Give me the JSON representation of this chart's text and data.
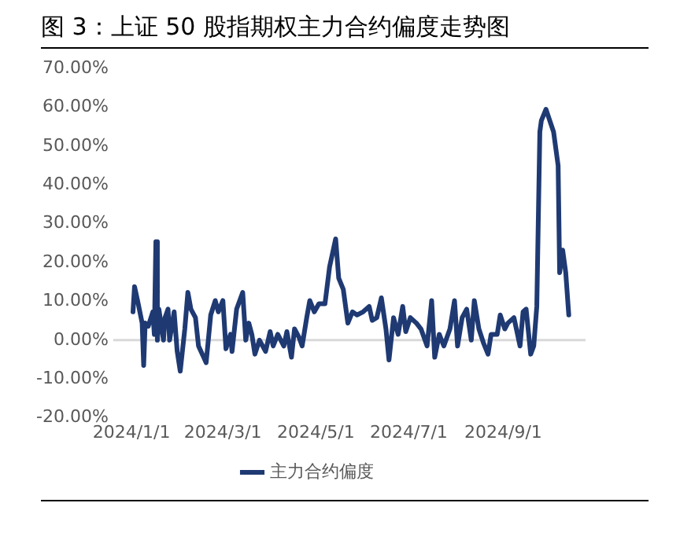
{
  "chart_data": {
    "type": "line",
    "title": "图 3：上证 50 股指期权主力合约偏度走势图",
    "x": [
      "2024-01-02",
      "2024-01-03",
      "2024-01-05",
      "2024-01-08",
      "2024-01-09",
      "2024-01-10",
      "2024-01-12",
      "2024-01-15",
      "2024-01-16",
      "2024-01-17",
      "2024-01-18",
      "2024-01-19",
      "2024-01-22",
      "2024-01-23",
      "2024-01-25",
      "2024-01-26",
      "2024-01-29",
      "2024-01-31",
      "2024-02-02",
      "2024-02-05",
      "2024-02-07",
      "2024-02-09",
      "2024-02-12",
      "2024-02-14",
      "2024-02-19",
      "2024-02-22",
      "2024-02-25",
      "2024-02-27",
      "2024-03-01",
      "2024-03-03",
      "2024-03-06",
      "2024-03-07",
      "2024-03-10",
      "2024-03-14",
      "2024-03-16",
      "2024-03-18",
      "2024-03-20",
      "2024-03-22",
      "2024-03-25",
      "2024-03-29",
      "2024-04-01",
      "2024-04-03",
      "2024-04-06",
      "2024-04-10",
      "2024-04-12",
      "2024-04-15",
      "2024-04-17",
      "2024-04-20",
      "2024-04-22",
      "2024-04-25",
      "2024-04-27",
      "2024-04-30",
      "2024-05-03",
      "2024-05-07",
      "2024-05-10",
      "2024-05-14",
      "2024-05-16",
      "2024-05-19",
      "2024-05-22",
      "2024-05-25",
      "2024-05-28",
      "2024-06-01",
      "2024-06-05",
      "2024-06-07",
      "2024-06-10",
      "2024-06-13",
      "2024-06-16",
      "2024-06-18",
      "2024-06-21",
      "2024-06-24",
      "2024-06-27",
      "2024-06-29",
      "2024-07-02",
      "2024-07-06",
      "2024-07-09",
      "2024-07-13",
      "2024-07-16",
      "2024-07-18",
      "2024-07-21",
      "2024-07-24",
      "2024-07-28",
      "2024-07-31",
      "2024-08-02",
      "2024-08-05",
      "2024-08-08",
      "2024-08-11",
      "2024-08-13",
      "2024-08-16",
      "2024-08-19",
      "2024-08-22",
      "2024-08-24",
      "2024-08-28",
      "2024-08-30",
      "2024-09-02",
      "2024-09-04",
      "2024-09-08",
      "2024-09-12",
      "2024-09-14",
      "2024-09-16",
      "2024-09-19",
      "2024-09-21",
      "2024-09-23",
      "2024-09-25",
      "2024-09-26",
      "2024-09-29",
      "2024-10-04",
      "2024-10-07",
      "2024-10-08",
      "2024-10-10",
      "2024-10-12",
      "2024-10-14"
    ],
    "series": [
      {
        "name": "主力合约偏度",
        "color": "#1f3a73",
        "values": [
          7.3,
          13.8,
          10.2,
          4.4,
          -6.5,
          4.4,
          3.6,
          7.3,
          1.5,
          25.4,
          0,
          8,
          0,
          5.8,
          8,
          0,
          7.3,
          -2.9,
          -8,
          2.9,
          12.3,
          8,
          5.8,
          -1.5,
          -5.8,
          6.5,
          10.2,
          7.3,
          10.2,
          -2.2,
          1.5,
          -2.9,
          8,
          12.3,
          0,
          4.4,
          1.5,
          -3.6,
          0,
          -2.9,
          2.2,
          -1.5,
          1.5,
          -1.5,
          2.2,
          -4.4,
          2.9,
          0.7,
          -1.5,
          5.8,
          10.2,
          7.3,
          9.4,
          9.4,
          18.9,
          26.1,
          16,
          13.1,
          4.4,
          7.3,
          6.5,
          7.3,
          8.7,
          5.1,
          5.8,
          10.9,
          2.9,
          -5.1,
          5.8,
          1.5,
          8.7,
          2.2,
          5.8,
          4.4,
          2.9,
          -1.5,
          10.2,
          -4.4,
          1.5,
          -1.5,
          2.9,
          10.2,
          -1.5,
          5.8,
          8,
          0,
          10.2,
          2.9,
          -0.7,
          -3.6,
          1.5,
          1.5,
          6.5,
          2.9,
          4.4,
          5.8,
          -1.5,
          7.3,
          8,
          -3.6,
          -1.5,
          8.7,
          53.7,
          56.6,
          59.5,
          53.7,
          45,
          17.4,
          23.2,
          17.4,
          6.5
        ]
      }
    ],
    "xlim": [
      "2023-12-20",
      "2024-10-25"
    ],
    "xticks": [
      {
        "value": "2024-01-01",
        "label": "2024/1/1"
      },
      {
        "value": "2024-03-01",
        "label": "2024/3/1"
      },
      {
        "value": "2024-05-01",
        "label": "2024/5/1"
      },
      {
        "value": "2024-07-01",
        "label": "2024/7/1"
      },
      {
        "value": "2024-09-01",
        "label": "2024/9/1"
      }
    ],
    "ylim": [
      -20,
      70
    ],
    "yticks": [
      {
        "value": -20,
        "label": "-20.00%"
      },
      {
        "value": -10,
        "label": "-10.00%"
      },
      {
        "value": 0,
        "label": "0.00%"
      },
      {
        "value": 10,
        "label": "10.00%"
      },
      {
        "value": 20,
        "label": "20.00%"
      },
      {
        "value": 30,
        "label": "30.00%"
      },
      {
        "value": 40,
        "label": "40.00%"
      },
      {
        "value": 50,
        "label": "50.00%"
      },
      {
        "value": 60,
        "label": "60.00%"
      },
      {
        "value": 70,
        "label": "70.00%"
      }
    ],
    "ref_lines": [
      {
        "axis": "y",
        "value": 0,
        "color": "#d9d9d9"
      }
    ],
    "grid": false,
    "legend": "bottom",
    "marker": "none",
    "line_style": "solid"
  }
}
